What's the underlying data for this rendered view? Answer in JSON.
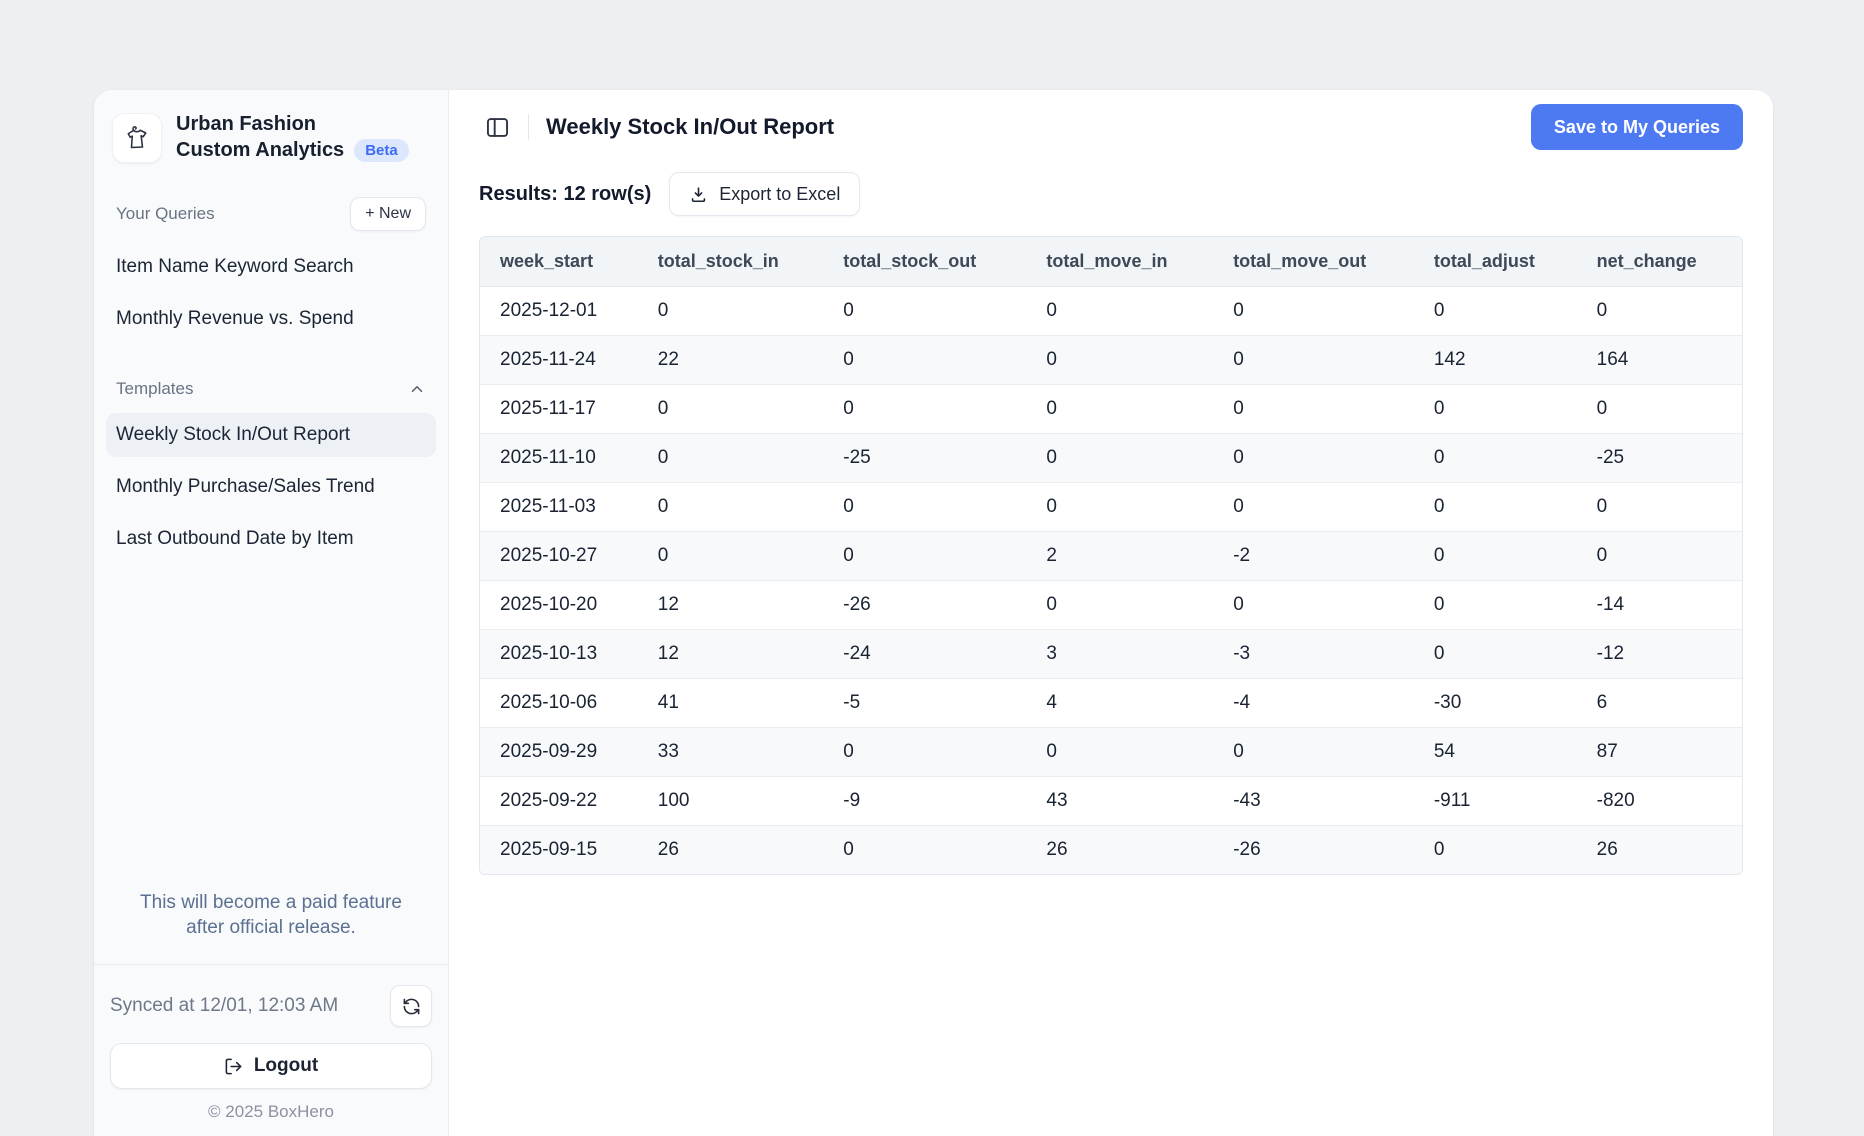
{
  "app": {
    "brand_line1": "Urban Fashion",
    "brand_line2": "Custom Analytics",
    "beta_badge": "Beta"
  },
  "sidebar": {
    "your_queries_label": "Your Queries",
    "new_button": "+ New",
    "queries": [
      "Item Name Keyword Search",
      "Monthly Revenue vs. Spend"
    ],
    "templates_label": "Templates",
    "templates": [
      "Weekly Stock In/Out Report",
      "Monthly Purchase/Sales Trend",
      "Last Outbound Date by Item"
    ],
    "selected_template": "Weekly Stock In/Out Report",
    "note_line1": "This will become a paid feature",
    "note_line2": "after official release.",
    "synced_text": "Synced at 12/01, 12:03 AM",
    "logout_label": "Logout",
    "copyright": "© 2025 BoxHero"
  },
  "header": {
    "title": "Weekly Stock In/Out Report",
    "save_button": "Save to My Queries"
  },
  "results": {
    "summary": "Results: 12 row(s)",
    "export_button": "Export to Excel"
  },
  "table": {
    "columns": [
      "week_start",
      "total_stock_in",
      "total_stock_out",
      "total_move_in",
      "total_move_out",
      "total_adjust",
      "net_change"
    ],
    "column_widths_pct": [
      12.5,
      14.7,
      16.1,
      14.8,
      15.9,
      12.9,
      13.1
    ],
    "rows": [
      [
        "2025-12-01",
        "0",
        "0",
        "0",
        "0",
        "0",
        "0"
      ],
      [
        "2025-11-24",
        "22",
        "0",
        "0",
        "0",
        "142",
        "164"
      ],
      [
        "2025-11-17",
        "0",
        "0",
        "0",
        "0",
        "0",
        "0"
      ],
      [
        "2025-11-10",
        "0",
        "-25",
        "0",
        "0",
        "0",
        "-25"
      ],
      [
        "2025-11-03",
        "0",
        "0",
        "0",
        "0",
        "0",
        "0"
      ],
      [
        "2025-10-27",
        "0",
        "0",
        "2",
        "-2",
        "0",
        "0"
      ],
      [
        "2025-10-20",
        "12",
        "-26",
        "0",
        "0",
        "0",
        "-14"
      ],
      [
        "2025-10-13",
        "12",
        "-24",
        "3",
        "-3",
        "0",
        "-12"
      ],
      [
        "2025-10-06",
        "41",
        "-5",
        "4",
        "-4",
        "-30",
        "6"
      ],
      [
        "2025-09-29",
        "33",
        "0",
        "0",
        "0",
        "54",
        "87"
      ],
      [
        "2025-09-22",
        "100",
        "-9",
        "43",
        "-43",
        "-911",
        "-820"
      ],
      [
        "2025-09-15",
        "26",
        "0",
        "26",
        "-26",
        "0",
        "26"
      ]
    ]
  },
  "colors": {
    "accent_blue": "#4d7af2",
    "beta_badge_bg": "#dce7fd",
    "beta_badge_text": "#3c6cf0",
    "page_background": "#edeff2",
    "sidebar_background": "#f8fafc",
    "table_header_background": "#f2f5f8",
    "alt_row_background": "#f7f9fb"
  }
}
